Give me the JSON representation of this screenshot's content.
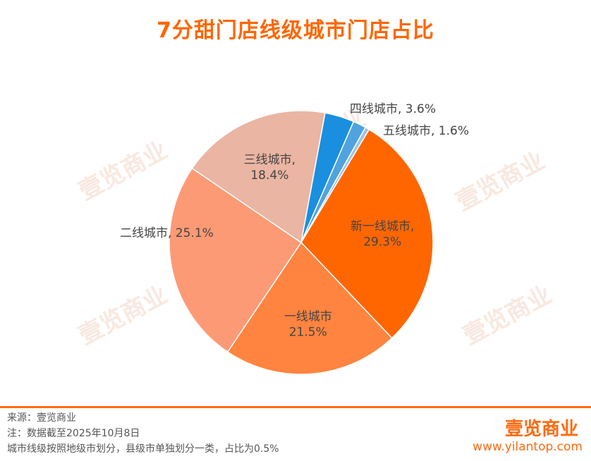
{
  "title": "7分甜门店线级城市门店占比",
  "watermark": "壹览商业",
  "chart_data": {
    "type": "pie",
    "title": "7分甜门店线级城市门店占比",
    "start_angle_deg": 31,
    "slices": [
      {
        "label_lines": [
          "新一线城市,",
          "29.3%"
        ],
        "name": "新一线城市",
        "value": 29.3,
        "color": "#ff6600",
        "label_pos": "inside"
      },
      {
        "label_lines": [
          "一线城市",
          "21.5%"
        ],
        "name": "一线城市",
        "value": 21.5,
        "color": "#ff8440",
        "label_pos": "inside"
      },
      {
        "label_lines": [
          "二线城市, 25.1%"
        ],
        "name": "二线城市",
        "value": 25.1,
        "color": "#fd9a76",
        "label_pos": "outside-left"
      },
      {
        "label_lines": [
          "三线城市,",
          "18.4%"
        ],
        "name": "三线城市",
        "value": 18.4,
        "color": "#eab5a2",
        "label_pos": "inside"
      },
      {
        "label_lines": [
          "四线城市, 3.6%"
        ],
        "name": "四线城市",
        "value": 3.6,
        "color": "#1a8fe0",
        "label_pos": "outside-top"
      },
      {
        "label_lines": [
          "五线城市, 1.6%"
        ],
        "name": "五线城市",
        "value": 1.6,
        "color": "#4fa3de",
        "label_pos": "outside-right"
      },
      {
        "label_lines": [],
        "name": "县级市",
        "value": 0.5,
        "color": "#9cc3e6",
        "label_pos": "none"
      }
    ]
  },
  "footer": {
    "source": "来源：壹览商业",
    "note": "注：数据截至2025年10月8日",
    "explanation": "城市线级按照地级市划分，县级市单独划分一类，占比为0.5%"
  },
  "brand": {
    "name": "壹览商业",
    "url": "www.yilantop.com"
  }
}
